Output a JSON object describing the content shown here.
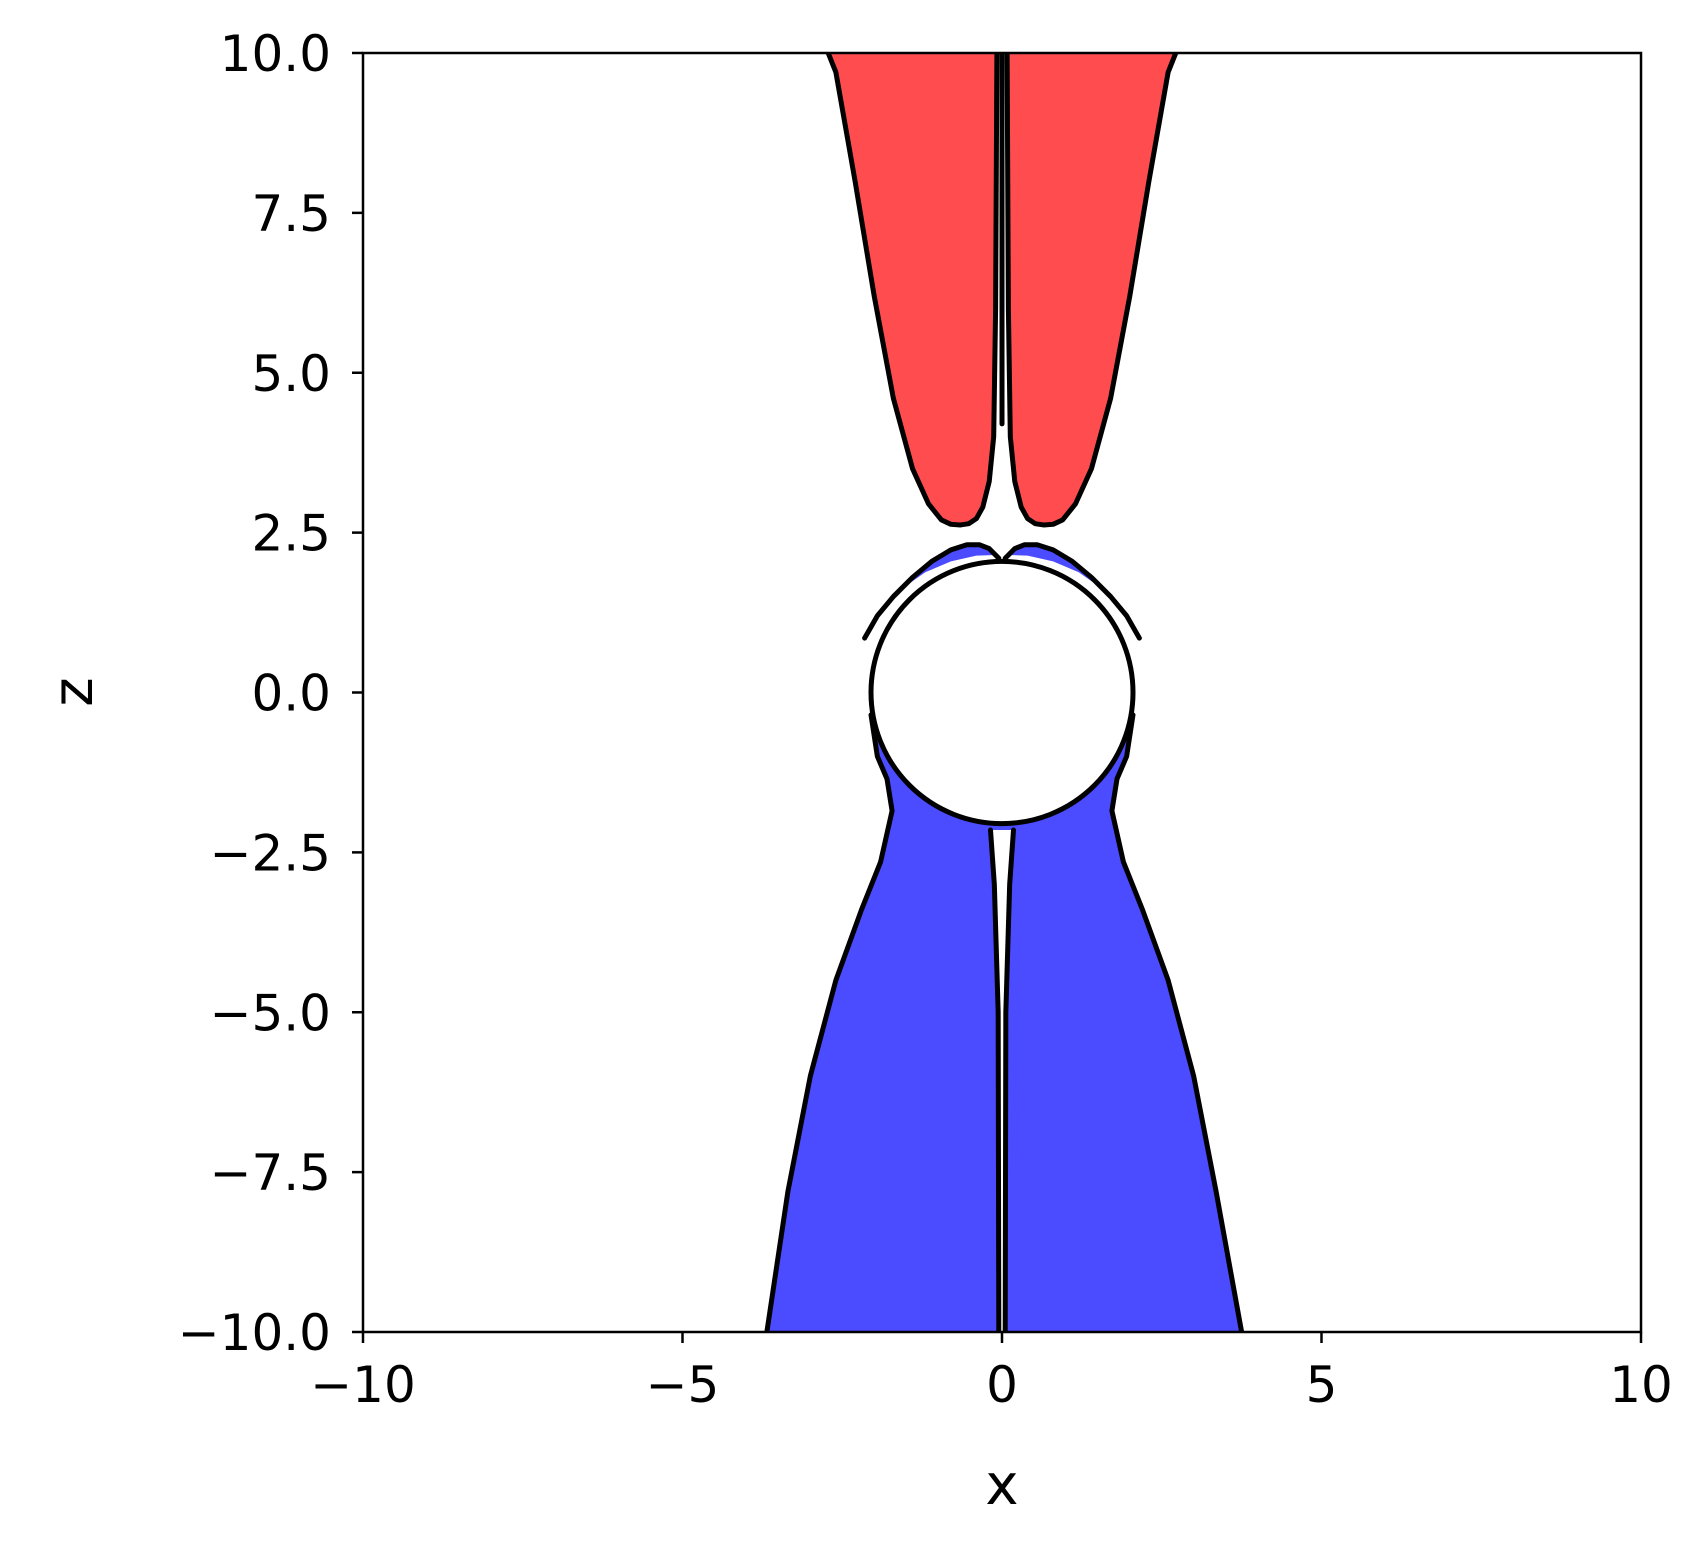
{
  "chart_data": {
    "type": "contour",
    "title": "",
    "xlabel": "x",
    "ylabel": "z",
    "xlim": [
      -10,
      10
    ],
    "ylim": [
      -10,
      10
    ],
    "x_ticks": [
      -10,
      -5,
      0,
      5,
      10
    ],
    "x_tick_labels": [
      "−10",
      "−5",
      "0",
      "5",
      "10"
    ],
    "y_ticks": [
      10,
      7.5,
      5,
      2.5,
      0,
      -2.5,
      -5,
      -7.5,
      -10
    ],
    "y_tick_labels": [
      "10.0",
      "7.5",
      "5.0",
      "2.5",
      "0.0",
      "−2.5",
      "−5.0",
      "−7.5",
      "−10.0"
    ],
    "grid": false,
    "colors": {
      "positive_lobe": "#ff4d4f",
      "negative_lobe": "#4b4bff",
      "contour_line": "#000000",
      "sphere": "#ffffff"
    },
    "sphere": {
      "center": [
        0,
        0
      ],
      "radius": 2.05
    },
    "regions": [
      {
        "name": "upper-right-lobe",
        "fill": "positive_lobe",
        "x": [
          0.08,
          0.1,
          0.13,
          0.2,
          0.3,
          0.4,
          0.52,
          0.65,
          0.8,
          0.95,
          1.15,
          1.4,
          1.7,
          2.0,
          2.3,
          2.6,
          2.72,
          0.08
        ],
        "z": [
          10,
          6.0,
          4.0,
          3.3,
          2.9,
          2.72,
          2.64,
          2.62,
          2.63,
          2.7,
          2.95,
          3.5,
          4.6,
          6.2,
          8.0,
          9.7,
          10,
          10
        ]
      },
      {
        "name": "upper-left-lobe",
        "fill": "positive_lobe",
        "x": [
          -0.08,
          -0.1,
          -0.13,
          -0.2,
          -0.3,
          -0.4,
          -0.52,
          -0.65,
          -0.8,
          -0.95,
          -1.15,
          -1.4,
          -1.7,
          -2.0,
          -2.3,
          -2.6,
          -2.72,
          -0.08
        ],
        "z": [
          10,
          6.0,
          4.0,
          3.3,
          2.9,
          2.72,
          2.64,
          2.62,
          2.63,
          2.7,
          2.95,
          3.5,
          4.6,
          6.2,
          8.0,
          9.7,
          10,
          10
        ]
      },
      {
        "name": "cap-right-lobe",
        "fill": "negative_lobe",
        "x": [
          0.05,
          0.2,
          0.35,
          0.55,
          0.8,
          1.1,
          1.4,
          1.7,
          1.95,
          1.6,
          1.2,
          0.8,
          0.4,
          0.1,
          0.05
        ],
        "z": [
          2.1,
          2.25,
          2.31,
          2.31,
          2.23,
          2.05,
          1.8,
          1.5,
          1.2,
          1.6,
          1.88,
          2.05,
          2.14,
          2.15,
          2.1
        ]
      },
      {
        "name": "cap-left-lobe",
        "fill": "negative_lobe",
        "x": [
          -0.05,
          -0.2,
          -0.35,
          -0.55,
          -0.8,
          -1.1,
          -1.4,
          -1.7,
          -1.95,
          -1.6,
          -1.2,
          -0.8,
          -0.4,
          -0.1,
          -0.05
        ],
        "z": [
          2.1,
          2.25,
          2.31,
          2.31,
          2.23,
          2.05,
          1.8,
          1.5,
          1.2,
          1.6,
          1.88,
          2.05,
          2.14,
          2.15,
          2.1
        ]
      },
      {
        "name": "lower-lobe",
        "fill": "negative_lobe",
        "x": [
          -3.68,
          -3.35,
          -3.0,
          -2.6,
          -2.2,
          -1.9,
          -1.72,
          -1.8,
          -1.95,
          -2.05,
          -1.75,
          0,
          1.75,
          2.05,
          1.95,
          1.8,
          1.72,
          1.9,
          2.2,
          2.6,
          3.0,
          3.35,
          3.75,
          -3.68
        ],
        "z": [
          -10,
          -7.8,
          -6.0,
          -4.5,
          -3.4,
          -2.65,
          -1.85,
          -1.35,
          -1.0,
          -0.35,
          0.8,
          0,
          0.8,
          -0.35,
          -1.0,
          -1.35,
          -1.85,
          -2.65,
          -3.4,
          -4.5,
          -6.0,
          -7.8,
          -10,
          -10
        ]
      },
      {
        "name": "lower-core-gap",
        "fill": "sphere",
        "x": [
          -0.18,
          -0.12,
          -0.06,
          -0.05,
          0.05,
          0.06,
          0.12,
          0.18,
          -0.18
        ],
        "z": [
          -2.15,
          -3.0,
          -5.0,
          -10,
          -10,
          -5.0,
          -3.0,
          -2.15,
          -2.15
        ]
      }
    ],
    "lines": [
      {
        "name": "upper-right-contour",
        "x": [
          0.08,
          0.1,
          0.13,
          0.2,
          0.3,
          0.4,
          0.52,
          0.65,
          0.8,
          0.95,
          1.15,
          1.4,
          1.7,
          2.0,
          2.3,
          2.6,
          2.72
        ],
        "z": [
          10,
          6.0,
          4.0,
          3.3,
          2.9,
          2.72,
          2.64,
          2.62,
          2.63,
          2.7,
          2.95,
          3.5,
          4.6,
          6.2,
          8.0,
          9.7,
          10
        ]
      },
      {
        "name": "upper-left-contour",
        "x": [
          -0.08,
          -0.1,
          -0.13,
          -0.2,
          -0.3,
          -0.4,
          -0.52,
          -0.65,
          -0.8,
          -0.95,
          -1.15,
          -1.4,
          -1.7,
          -2.0,
          -2.3,
          -2.6,
          -2.72
        ],
        "z": [
          10,
          6.0,
          4.0,
          3.3,
          2.9,
          2.72,
          2.64,
          2.62,
          2.63,
          2.7,
          2.95,
          3.5,
          4.6,
          6.2,
          8.0,
          9.7,
          10
        ]
      },
      {
        "name": "cap-right-contour",
        "x": [
          0.05,
          0.2,
          0.35,
          0.55,
          0.8,
          1.1,
          1.4,
          1.7,
          1.95,
          2.15
        ],
        "z": [
          2.1,
          2.25,
          2.31,
          2.31,
          2.23,
          2.05,
          1.8,
          1.5,
          1.2,
          0.85
        ]
      },
      {
        "name": "cap-left-contour",
        "x": [
          -0.05,
          -0.2,
          -0.35,
          -0.55,
          -0.8,
          -1.1,
          -1.4,
          -1.7,
          -1.95,
          -2.15
        ],
        "z": [
          2.1,
          2.25,
          2.31,
          2.31,
          2.23,
          2.05,
          1.8,
          1.5,
          1.2,
          0.85
        ]
      },
      {
        "name": "lower-left-contour",
        "x": [
          -3.68,
          -3.35,
          -3.0,
          -2.6,
          -2.2,
          -1.9,
          -1.72,
          -1.8,
          -1.95,
          -2.05
        ],
        "z": [
          -10,
          -7.8,
          -6.0,
          -4.5,
          -3.4,
          -2.65,
          -1.85,
          -1.35,
          -1.0,
          -0.35
        ]
      },
      {
        "name": "lower-right-contour",
        "x": [
          3.75,
          3.35,
          3.0,
          2.6,
          2.2,
          1.9,
          1.72,
          1.8,
          1.95,
          2.05
        ],
        "z": [
          -10,
          -7.8,
          -6.0,
          -4.5,
          -3.4,
          -2.65,
          -1.85,
          -1.35,
          -1.0,
          -0.35
        ]
      },
      {
        "name": "lower-core-left-contour",
        "x": [
          -0.18,
          -0.12,
          -0.06,
          -0.05
        ],
        "z": [
          -2.15,
          -3.0,
          -5.0,
          -10
        ]
      },
      {
        "name": "lower-core-right-contour",
        "x": [
          0.18,
          0.12,
          0.06,
          0.05
        ],
        "z": [
          -2.15,
          -3.0,
          -5.0,
          -10
        ]
      },
      {
        "name": "top-centerline",
        "x": [
          0,
          0
        ],
        "z": [
          4.2,
          10
        ]
      }
    ]
  }
}
